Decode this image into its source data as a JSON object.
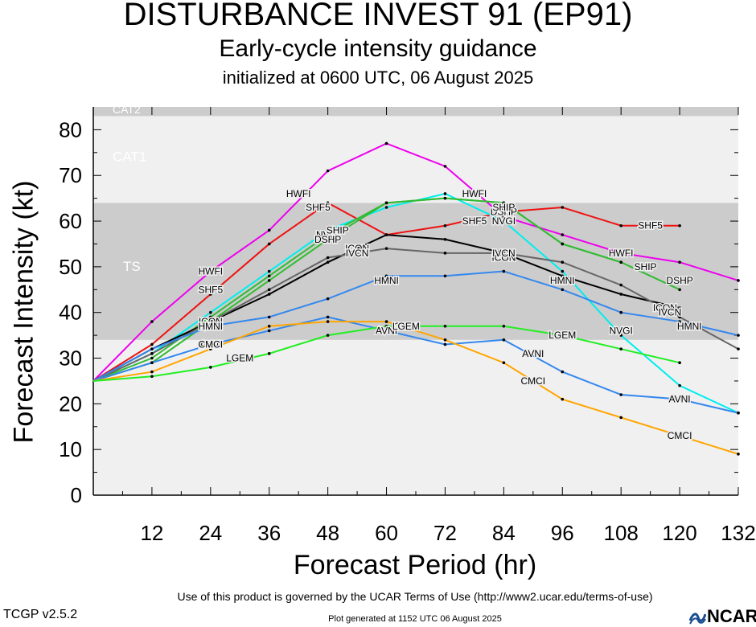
{
  "header": {
    "title": "DISTURBANCE INVEST 91 (EP91)",
    "subtitle": "Early-cycle intensity guidance",
    "init": "initialized at 0600 UTC, 06 August 2025"
  },
  "footer": {
    "terms": "Use of this product is governed by the UCAR Terms of Use (http://www2.ucar.edu/terms-of-use)",
    "version": "TCGP v2.5.2",
    "generated": "Plot generated at 1152 UTC   06 August 2025",
    "logo": "NCAR",
    "logo_icon": "ncar-wave-icon"
  },
  "chart_data": {
    "type": "line",
    "title": "DISTURBANCE INVEST 91 (EP91)",
    "xlabel": "Forecast Period (hr)",
    "ylabel": "Forecast Intensity (kt)",
    "xlim": [
      0,
      132
    ],
    "ylim": [
      0,
      85
    ],
    "x_ticks": [
      12,
      24,
      36,
      48,
      60,
      72,
      84,
      96,
      108,
      120,
      132
    ],
    "y_ticks": [
      0,
      10,
      20,
      30,
      40,
      50,
      60,
      70,
      80
    ],
    "grid": false,
    "bands": [
      {
        "label": "TS",
        "from": 34,
        "to": 64,
        "color": "#cccccc"
      },
      {
        "label": "CAT1",
        "from": 64,
        "to": 83,
        "color": "#f0f0f0"
      },
      {
        "label": "CAT2",
        "from": 83,
        "to": 85,
        "color": "#cccccc"
      }
    ],
    "series": [
      {
        "name": "HWFI",
        "color": "#ee00ee",
        "points": [
          [
            0,
            25
          ],
          [
            12,
            38
          ],
          [
            24,
            49
          ],
          [
            36,
            58
          ],
          [
            48,
            71
          ],
          [
            60,
            77
          ],
          [
            72,
            72
          ],
          [
            84,
            61
          ],
          [
            96,
            57
          ],
          [
            108,
            53
          ],
          [
            120,
            51
          ],
          [
            132,
            47
          ]
        ],
        "labels": [
          [
            24,
            49
          ],
          [
            42,
            66
          ],
          [
            78,
            66
          ],
          [
            108,
            53
          ]
        ]
      },
      {
        "name": "SHF5",
        "color": "#ee1111",
        "points": [
          [
            0,
            25
          ],
          [
            12,
            33
          ],
          [
            24,
            44
          ],
          [
            36,
            55
          ],
          [
            48,
            64
          ],
          [
            60,
            57
          ],
          [
            72,
            59
          ],
          [
            84,
            62
          ],
          [
            96,
            63
          ],
          [
            108,
            59
          ],
          [
            120,
            59
          ]
        ],
        "labels": [
          [
            24,
            45
          ],
          [
            46,
            63
          ],
          [
            78,
            60
          ],
          [
            114,
            59
          ]
        ]
      },
      {
        "name": "NVGI",
        "color": "#00eeee",
        "points": [
          [
            0,
            25
          ],
          [
            12,
            31
          ],
          [
            24,
            40
          ],
          [
            36,
            49
          ],
          [
            48,
            58
          ],
          [
            60,
            63
          ],
          [
            72,
            66
          ],
          [
            84,
            60
          ],
          [
            96,
            49
          ],
          [
            108,
            35
          ],
          [
            120,
            24
          ],
          [
            132,
            18
          ]
        ],
        "labels": [
          [
            48,
            57
          ],
          [
            84,
            60
          ],
          [
            108,
            36
          ]
        ]
      },
      {
        "name": "DSHP",
        "color": "#33bb33",
        "points": [
          [
            0,
            25
          ],
          [
            12,
            29
          ],
          [
            24,
            38
          ],
          [
            36,
            47
          ],
          [
            48,
            56
          ],
          [
            60,
            64
          ],
          [
            72,
            65
          ],
          [
            84,
            64
          ],
          [
            96,
            55
          ],
          [
            108,
            51
          ],
          [
            120,
            45
          ]
        ],
        "labels": [
          [
            48,
            56
          ],
          [
            84,
            62
          ],
          [
            120,
            47
          ]
        ]
      },
      {
        "name": "SHIP",
        "color": "#33bb33",
        "points": [
          [
            0,
            25
          ],
          [
            12,
            30
          ],
          [
            24,
            39
          ],
          [
            36,
            48
          ],
          [
            48,
            57
          ],
          [
            60,
            64
          ],
          [
            72,
            65
          ],
          [
            84,
            64
          ],
          [
            96,
            55
          ],
          [
            108,
            51
          ]
        ],
        "labels": [
          [
            50,
            58
          ],
          [
            84,
            63
          ],
          [
            113,
            50
          ]
        ]
      },
      {
        "name": "ICON",
        "color": "#000000",
        "points": [
          [
            0,
            25
          ],
          [
            12,
            32
          ],
          [
            24,
            38
          ],
          [
            36,
            44
          ],
          [
            48,
            51
          ],
          [
            60,
            57
          ],
          [
            72,
            56
          ],
          [
            84,
            53
          ],
          [
            96,
            48
          ],
          [
            108,
            44
          ],
          [
            120,
            41
          ]
        ],
        "labels": [
          [
            24,
            38
          ],
          [
            54,
            54
          ],
          [
            84,
            52
          ],
          [
            117,
            41
          ]
        ]
      },
      {
        "name": "IVCN",
        "color": "#666666",
        "points": [
          [
            0,
            25
          ],
          [
            12,
            31
          ],
          [
            24,
            38
          ],
          [
            36,
            45
          ],
          [
            48,
            52
          ],
          [
            60,
            54
          ],
          [
            72,
            53
          ],
          [
            84,
            53
          ],
          [
            96,
            51
          ],
          [
            108,
            46
          ],
          [
            120,
            39
          ],
          [
            132,
            32
          ]
        ],
        "labels": [
          [
            24,
            37
          ],
          [
            54,
            53
          ],
          [
            84,
            53
          ],
          [
            118,
            40
          ]
        ]
      },
      {
        "name": "HMNI",
        "color": "#3388ee",
        "points": [
          [
            0,
            25
          ],
          [
            12,
            32
          ],
          [
            24,
            37
          ],
          [
            36,
            39
          ],
          [
            48,
            43
          ],
          [
            60,
            48
          ],
          [
            72,
            48
          ],
          [
            84,
            49
          ],
          [
            96,
            45
          ],
          [
            108,
            40
          ],
          [
            120,
            38
          ],
          [
            132,
            35
          ]
        ],
        "labels": [
          [
            24,
            37
          ],
          [
            60,
            47
          ],
          [
            96,
            47
          ],
          [
            122,
            37
          ]
        ]
      },
      {
        "name": "AVNI",
        "color": "#3388ee",
        "points": [
          [
            0,
            25
          ],
          [
            12,
            29
          ],
          [
            24,
            33
          ],
          [
            36,
            36
          ],
          [
            48,
            39
          ],
          [
            60,
            36
          ],
          [
            72,
            33
          ],
          [
            84,
            34
          ],
          [
            96,
            27
          ],
          [
            108,
            22
          ],
          [
            120,
            21
          ],
          [
            132,
            18
          ]
        ],
        "labels": [
          [
            24,
            33
          ],
          [
            60,
            36
          ],
          [
            90,
            31
          ],
          [
            120,
            21
          ]
        ]
      },
      {
        "name": "CMCI",
        "color": "#ffa500",
        "points": [
          [
            0,
            25
          ],
          [
            12,
            27
          ],
          [
            24,
            32
          ],
          [
            36,
            37
          ],
          [
            48,
            38
          ],
          [
            60,
            38
          ],
          [
            72,
            34
          ],
          [
            84,
            29
          ],
          [
            96,
            21
          ],
          [
            108,
            17
          ],
          [
            120,
            13
          ],
          [
            132,
            9
          ]
        ],
        "labels": [
          [
            24,
            33
          ],
          [
            64,
            37
          ],
          [
            90,
            25
          ],
          [
            120,
            13
          ]
        ]
      },
      {
        "name": "LGEM",
        "color": "#22ee22",
        "points": [
          [
            0,
            25
          ],
          [
            12,
            26
          ],
          [
            24,
            28
          ],
          [
            36,
            31
          ],
          [
            48,
            35
          ],
          [
            60,
            37
          ],
          [
            72,
            37
          ],
          [
            84,
            37
          ],
          [
            96,
            35
          ],
          [
            108,
            32
          ],
          [
            120,
            29
          ]
        ],
        "labels": [
          [
            30,
            30
          ],
          [
            64,
            37
          ],
          [
            96,
            35
          ]
        ]
      }
    ]
  }
}
